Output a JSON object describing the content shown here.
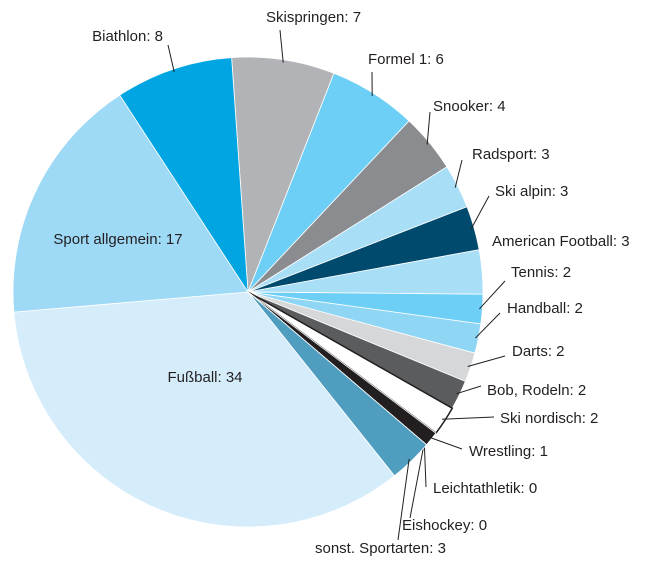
{
  "chart_data": {
    "type": "pie",
    "values": [
      7,
      6,
      4,
      3,
      3,
      3,
      2,
      2,
      2,
      2,
      2,
      1,
      0,
      0,
      3,
      34,
      17,
      8
    ],
    "value_labels": [
      "Skispringen: 7",
      "Formel 1: 6",
      "Snooker: 4",
      "Radsport: 3",
      "Ski alpin: 3",
      "American Football: 3",
      "Tennis: 2",
      "Handball: 2",
      "Darts: 2",
      "Bob, Rodeln: 2",
      "Ski nordisch: 2",
      "Wrestling: 1",
      "Leichtathletik: 0",
      "Eishockey: 0",
      "sonst. Sportarten: 3",
      "Fußball: 34",
      "Sport allgemein: 17",
      "Biathlon: 8"
    ],
    "colors": [
      "#b1b3b6",
      "#6dcff6",
      "#8a8c8f",
      "#a9def7",
      "#004a6e",
      "#a9def7",
      "#6dcff6",
      "#8fd6f5",
      "#d6d7d9",
      "#5b5c5e",
      "#ffffff",
      "#231f20",
      "#b8b8b8",
      "#4ab8e8",
      "#4f9dbf",
      "#d5edfb",
      "#9ed9f6",
      "#00a5e2"
    ]
  }
}
